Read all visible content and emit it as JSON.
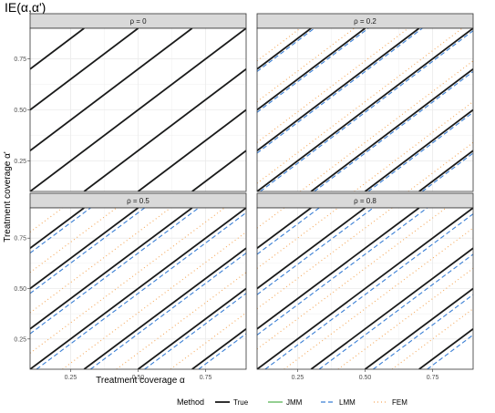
{
  "chart_data": {
    "type": "line",
    "title": "IE(α,α')",
    "xlabel": "Treatment coverage α",
    "ylabel": "Treatment coverage α'",
    "xlim": [
      0.1,
      0.9
    ],
    "ylim": [
      0.1,
      0.9
    ],
    "x_ticks": [
      "0.25",
      "0.50",
      "0.75"
    ],
    "y_ticks": [
      "0.25",
      "0.50",
      "0.75"
    ],
    "grid": true,
    "legend": {
      "title": "Method",
      "position": "bottom",
      "entries": [
        {
          "name": "True",
          "color": "#1a1a1a",
          "dash": "solid"
        },
        {
          "name": "JMM",
          "color": "#4daf4a",
          "dash": "solid"
        },
        {
          "name": "LMM",
          "color": "#3a7fd5",
          "dash": "dashed"
        },
        {
          "name": "FEM",
          "color": "#f5a85a",
          "dash": "dotted"
        }
      ]
    },
    "intercepts_true": [
      -0.6,
      -0.4,
      -0.2,
      0.0,
      0.2,
      0.4,
      0.6
    ],
    "series_offsets": {
      "True": 0,
      "JMM": 0,
      "LMM": -0.03,
      "FEM": 0.1
    },
    "panels": [
      {
        "label": "ρ = 0",
        "spread": 0.0
      },
      {
        "label": "ρ = 0.2",
        "spread": 0.4
      },
      {
        "label": "ρ = 0.5",
        "spread": 0.8
      },
      {
        "label": "ρ = 0.8",
        "spread": 1.0
      }
    ]
  }
}
